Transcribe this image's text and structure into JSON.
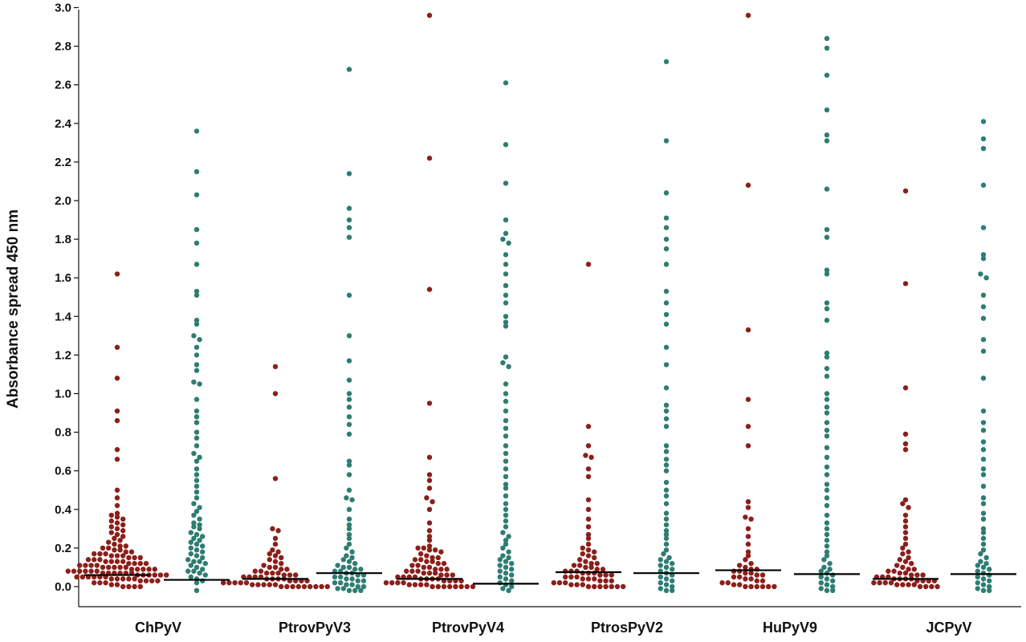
{
  "chart_data": {
    "type": "scatter",
    "subtype": "beeswarm",
    "ylabel": "Absorbance spread 450 nm",
    "ylim": [
      -0.1,
      3.0
    ],
    "yticks": [
      "0.0",
      "0.2",
      "0.4",
      "0.6",
      "0.8",
      "1.0",
      "1.2",
      "1.4",
      "1.6",
      "1.8",
      "2.0",
      "2.2",
      "2.4",
      "2.6",
      "2.8",
      "3.0"
    ],
    "grid": false,
    "colors": {
      "group_a": "#8b1f1a",
      "group_b": "#2e7d72",
      "median": "#000000"
    },
    "categories": [
      "ChPyV",
      "PtrovPyV3",
      "PtrovPyV4",
      "PtrosPyV2",
      "HuPyV9",
      "JCPyV"
    ],
    "series": [
      {
        "color": "group_a",
        "medians": [
          0.06,
          0.04,
          0.04,
          0.075,
          0.085,
          0.04
        ],
        "values": [
          [
            1.62,
            1.24,
            1.08,
            0.91,
            0.86,
            0.71,
            0.66,
            0.5,
            0.46,
            0.42,
            0.38,
            0.37,
            0.36,
            0.35,
            0.34,
            0.33,
            0.32,
            0.31,
            0.3,
            0.29,
            0.28,
            0.27,
            0.26,
            0.25,
            0.24,
            0.23,
            0.22,
            0.21,
            0.21,
            0.2,
            0.2,
            0.19,
            0.19,
            0.18,
            0.18,
            0.17,
            0.17,
            0.17,
            0.16,
            0.16,
            0.16,
            0.15,
            0.15,
            0.15,
            0.14,
            0.14,
            0.14,
            0.13,
            0.13,
            0.13,
            0.13,
            0.12,
            0.12,
            0.12,
            0.12,
            0.11,
            0.11,
            0.11,
            0.11,
            0.1,
            0.1,
            0.1,
            0.1,
            0.1,
            0.09,
            0.09,
            0.09,
            0.09,
            0.09,
            0.08,
            0.08,
            0.08,
            0.08,
            0.08,
            0.08,
            0.07,
            0.07,
            0.07,
            0.07,
            0.07,
            0.07,
            0.06,
            0.06,
            0.06,
            0.06,
            0.06,
            0.06,
            0.05,
            0.05,
            0.05,
            0.05,
            0.05,
            0.05,
            0.04,
            0.04,
            0.04,
            0.04,
            0.04,
            0.03,
            0.03,
            0.03,
            0.03,
            0.02,
            0.02,
            0.02,
            0.01,
            0.01,
            0.0,
            0.0,
            0.0,
            0.0
          ],
          [
            1.14,
            1.0,
            0.56,
            0.3,
            0.29,
            0.25,
            0.22,
            0.19,
            0.18,
            0.17,
            0.16,
            0.15,
            0.14,
            0.13,
            0.12,
            0.11,
            0.1,
            0.1,
            0.09,
            0.09,
            0.08,
            0.08,
            0.07,
            0.07,
            0.07,
            0.06,
            0.06,
            0.06,
            0.05,
            0.05,
            0.05,
            0.05,
            0.04,
            0.04,
            0.04,
            0.04,
            0.03,
            0.03,
            0.03,
            0.03,
            0.02,
            0.02,
            0.02,
            0.02,
            0.02,
            0.01,
            0.01,
            0.01,
            0.01,
            0.01,
            0.0,
            0.0,
            0.0,
            0.0,
            0.0,
            0.0,
            0.0,
            0.0,
            0.0
          ],
          [
            2.96,
            2.22,
            1.54,
            0.95,
            0.67,
            0.58,
            0.55,
            0.51,
            0.46,
            0.44,
            0.4,
            0.33,
            0.29,
            0.26,
            0.24,
            0.21,
            0.2,
            0.2,
            0.19,
            0.19,
            0.18,
            0.17,
            0.16,
            0.15,
            0.15,
            0.14,
            0.14,
            0.13,
            0.13,
            0.12,
            0.12,
            0.11,
            0.11,
            0.1,
            0.1,
            0.09,
            0.09,
            0.09,
            0.08,
            0.08,
            0.08,
            0.07,
            0.07,
            0.07,
            0.06,
            0.06,
            0.06,
            0.05,
            0.05,
            0.05,
            0.05,
            0.04,
            0.04,
            0.04,
            0.04,
            0.03,
            0.03,
            0.03,
            0.03,
            0.02,
            0.02,
            0.02,
            0.02,
            0.01,
            0.01,
            0.01,
            0.01,
            0.0,
            0.0,
            0.0,
            0.0,
            0.0,
            0.0,
            0.0,
            0.0
          ],
          [
            1.67,
            0.83,
            0.73,
            0.68,
            0.67,
            0.61,
            0.57,
            0.45,
            0.4,
            0.35,
            0.31,
            0.27,
            0.25,
            0.22,
            0.2,
            0.19,
            0.18,
            0.17,
            0.16,
            0.15,
            0.14,
            0.13,
            0.12,
            0.12,
            0.11,
            0.11,
            0.1,
            0.1,
            0.09,
            0.09,
            0.08,
            0.08,
            0.08,
            0.07,
            0.07,
            0.07,
            0.06,
            0.06,
            0.06,
            0.05,
            0.05,
            0.05,
            0.04,
            0.04,
            0.04,
            0.03,
            0.03,
            0.03,
            0.02,
            0.02,
            0.02,
            0.01,
            0.01,
            0.01,
            0.0,
            0.0,
            0.0,
            0.0,
            0.0,
            0.0,
            0.0
          ],
          [
            2.96,
            2.08,
            1.33,
            0.97,
            0.83,
            0.73,
            0.44,
            0.41,
            0.36,
            0.35,
            0.3,
            0.26,
            0.22,
            0.18,
            0.16,
            0.14,
            0.12,
            0.11,
            0.1,
            0.09,
            0.09,
            0.08,
            0.08,
            0.07,
            0.07,
            0.06,
            0.06,
            0.05,
            0.05,
            0.04,
            0.04,
            0.03,
            0.03,
            0.02,
            0.02,
            0.01,
            0.01,
            0.0,
            0.0,
            0.0,
            0.0,
            0.0,
            0.0
          ],
          [
            2.05,
            1.57,
            1.03,
            0.79,
            0.74,
            0.71,
            0.45,
            0.43,
            0.41,
            0.37,
            0.34,
            0.31,
            0.28,
            0.25,
            0.22,
            0.2,
            0.18,
            0.17,
            0.15,
            0.14,
            0.13,
            0.12,
            0.11,
            0.1,
            0.09,
            0.09,
            0.08,
            0.08,
            0.07,
            0.07,
            0.06,
            0.06,
            0.06,
            0.05,
            0.05,
            0.05,
            0.04,
            0.04,
            0.04,
            0.04,
            0.03,
            0.03,
            0.03,
            0.03,
            0.02,
            0.02,
            0.02,
            0.02,
            0.01,
            0.01,
            0.01,
            0.01,
            0.0,
            0.0,
            0.0,
            0.0
          ]
        ]
      },
      {
        "color": "group_b",
        "medians": [
          0.035,
          0.07,
          0.015,
          0.07,
          0.065,
          0.065
        ],
        "values": [
          [
            2.36,
            2.15,
            2.03,
            1.85,
            1.78,
            1.67,
            1.53,
            1.51,
            1.38,
            1.36,
            1.3,
            1.28,
            1.24,
            1.2,
            1.15,
            1.12,
            1.06,
            1.05,
            0.97,
            0.91,
            0.88,
            0.85,
            0.8,
            0.77,
            0.73,
            0.69,
            0.67,
            0.65,
            0.61,
            0.58,
            0.55,
            0.52,
            0.49,
            0.46,
            0.43,
            0.41,
            0.39,
            0.37,
            0.35,
            0.33,
            0.32,
            0.31,
            0.3,
            0.28,
            0.27,
            0.26,
            0.25,
            0.24,
            0.23,
            0.22,
            0.21,
            0.2,
            0.19,
            0.18,
            0.17,
            0.16,
            0.15,
            0.14,
            0.13,
            0.13,
            0.12,
            0.11,
            0.1,
            0.09,
            0.08,
            0.08,
            0.07,
            0.06,
            0.05,
            0.04,
            0.03,
            0.02,
            -0.02
          ],
          [
            2.68,
            2.14,
            1.96,
            1.9,
            1.86,
            1.81,
            1.51,
            1.3,
            1.17,
            1.07,
            1.0,
            0.97,
            0.93,
            0.88,
            0.84,
            0.79,
            0.65,
            0.63,
            0.58,
            0.5,
            0.46,
            0.45,
            0.4,
            0.35,
            0.32,
            0.3,
            0.27,
            0.25,
            0.22,
            0.2,
            0.18,
            0.16,
            0.15,
            0.14,
            0.13,
            0.12,
            0.11,
            0.1,
            0.1,
            0.09,
            0.09,
            0.08,
            0.08,
            0.07,
            0.07,
            0.06,
            0.06,
            0.05,
            0.05,
            0.04,
            0.04,
            0.03,
            0.03,
            0.02,
            0.02,
            0.01,
            0.01,
            0.0,
            0.0,
            -0.01,
            -0.01,
            -0.02,
            -0.02,
            -0.02
          ],
          [
            2.61,
            2.29,
            2.09,
            1.9,
            1.83,
            1.8,
            1.78,
            1.72,
            1.67,
            1.62,
            1.56,
            1.51,
            1.47,
            1.4,
            1.37,
            1.35,
            1.19,
            1.16,
            1.14,
            1.05,
            1.0,
            0.96,
            0.91,
            0.86,
            0.82,
            0.78,
            0.73,
            0.69,
            0.65,
            0.61,
            0.57,
            0.53,
            0.51,
            0.47,
            0.43,
            0.4,
            0.37,
            0.34,
            0.31,
            0.28,
            0.26,
            0.24,
            0.22,
            0.2,
            0.18,
            0.16,
            0.15,
            0.14,
            0.13,
            0.12,
            0.11,
            0.1,
            0.09,
            0.08,
            0.07,
            0.06,
            0.05,
            0.04,
            0.03,
            0.02,
            0.01,
            0.0,
            -0.01,
            -0.02
          ],
          [
            2.72,
            2.31,
            2.04,
            1.91,
            1.86,
            1.8,
            1.75,
            1.67,
            1.53,
            1.47,
            1.41,
            1.36,
            1.24,
            1.15,
            1.03,
            0.94,
            0.91,
            0.87,
            0.83,
            0.73,
            0.7,
            0.66,
            0.63,
            0.6,
            0.54,
            0.5,
            0.47,
            0.43,
            0.38,
            0.35,
            0.32,
            0.29,
            0.27,
            0.25,
            0.22,
            0.19,
            0.17,
            0.15,
            0.14,
            0.13,
            0.12,
            0.11,
            0.1,
            0.09,
            0.08,
            0.07,
            0.06,
            0.05,
            0.04,
            0.03,
            0.02,
            0.01,
            0.0,
            -0.01,
            -0.02,
            -0.02
          ],
          [
            2.84,
            2.79,
            2.65,
            2.47,
            2.34,
            2.31,
            2.06,
            1.85,
            1.81,
            1.64,
            1.62,
            1.47,
            1.44,
            1.38,
            1.21,
            1.19,
            1.13,
            1.09,
            1.0,
            0.97,
            0.93,
            0.9,
            0.85,
            0.81,
            0.78,
            0.72,
            0.67,
            0.62,
            0.58,
            0.53,
            0.5,
            0.46,
            0.42,
            0.37,
            0.33,
            0.3,
            0.27,
            0.24,
            0.21,
            0.18,
            0.16,
            0.14,
            0.12,
            0.1,
            0.09,
            0.08,
            0.07,
            0.06,
            0.05,
            0.04,
            0.03,
            0.02,
            0.01,
            0.0,
            -0.01,
            -0.02,
            -0.02
          ],
          [
            2.41,
            2.32,
            2.27,
            2.08,
            1.86,
            1.72,
            1.7,
            1.62,
            1.6,
            1.51,
            1.45,
            1.39,
            1.28,
            1.22,
            1.08,
            0.91,
            0.85,
            0.81,
            0.75,
            0.71,
            0.66,
            0.61,
            0.58,
            0.52,
            0.46,
            0.43,
            0.38,
            0.35,
            0.3,
            0.28,
            0.25,
            0.22,
            0.19,
            0.17,
            0.15,
            0.13,
            0.12,
            0.11,
            0.1,
            0.09,
            0.08,
            0.07,
            0.06,
            0.05,
            0.04,
            0.03,
            0.02,
            0.01,
            0.0,
            -0.01,
            -0.02,
            -0.02
          ]
        ]
      }
    ]
  }
}
